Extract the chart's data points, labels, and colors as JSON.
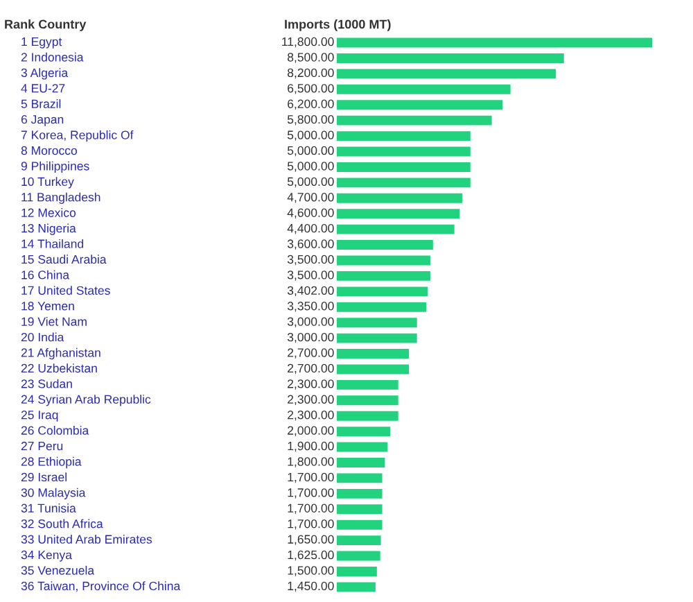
{
  "chart_data": {
    "type": "bar",
    "orientation": "horizontal",
    "ylabel": "Rank Country",
    "xlabel": "Imports (1000 MT)",
    "color": "#22d27e",
    "categories": [
      "1 Egypt",
      "2 Indonesia",
      "3 Algeria",
      "4 EU-27",
      "5 Brazil",
      "6 Japan",
      "7 Korea, Republic Of",
      "8 Morocco",
      "9 Philippines",
      "10 Turkey",
      "11 Bangladesh",
      "12 Mexico",
      "13 Nigeria",
      "14 Thailand",
      "15 Saudi Arabia",
      "16 China",
      "17 United States",
      "18 Yemen",
      "19 Viet Nam",
      "20 India",
      "21 Afghanistan",
      "22 Uzbekistan",
      "23 Sudan",
      "24 Syrian Arab Republic",
      "25 Iraq",
      "26 Colombia",
      "27 Peru",
      "28 Ethiopia",
      "29 Israel",
      "30 Malaysia",
      "31 Tunisia",
      "32 South Africa",
      "33 United Arab Emirates",
      "34 Kenya",
      "35 Venezuela",
      "36 Taiwan, Province Of China"
    ],
    "values": [
      11800,
      8500,
      8200,
      6500,
      6200,
      5800,
      5000,
      5000,
      5000,
      5000,
      4700,
      4600,
      4400,
      3600,
      3500,
      3500,
      3402,
      3350,
      3000,
      3000,
      2700,
      2700,
      2300,
      2300,
      2300,
      2000,
      1900,
      1800,
      1700,
      1700,
      1700,
      1700,
      1650,
      1625,
      1500,
      1450
    ],
    "value_labels": [
      "11,800.00",
      "8,500.00",
      "8,200.00",
      "6,500.00",
      "6,200.00",
      "5,800.00",
      "5,000.00",
      "5,000.00",
      "5,000.00",
      "5,000.00",
      "4,700.00",
      "4,600.00",
      "4,400.00",
      "3,600.00",
      "3,500.00",
      "3,500.00",
      "3,402.00",
      "3,350.00",
      "3,000.00",
      "3,000.00",
      "2,700.00",
      "2,700.00",
      "2,300.00",
      "2,300.00",
      "2,300.00",
      "2,000.00",
      "1,900.00",
      "1,800.00",
      "1,700.00",
      "1,700.00",
      "1,700.00",
      "1,700.00",
      "1,650.00",
      "1,625.00",
      "1,500.00",
      "1,450.00"
    ]
  }
}
